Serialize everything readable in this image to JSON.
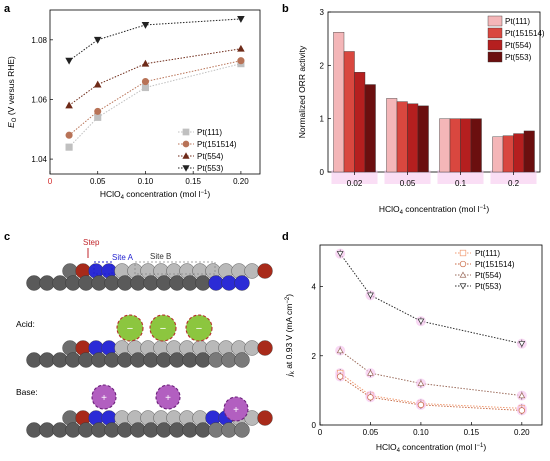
{
  "panel_letters": {
    "a": "a",
    "b": "b",
    "c": "c",
    "d": "d"
  },
  "colors": {
    "pt111": "#f4b6b8",
    "pt151514": "#d9473f",
    "pt554": "#b51f1f",
    "pt553": "#6b0f0f",
    "a_111": "#c0c0c0",
    "a_151514": "#b87357",
    "a_554": "#6e2a18",
    "a_553": "#222222",
    "d_111": "#f09b73",
    "d_151514": "#c96a45",
    "d_554": "#9a6a5a",
    "d_553": "#2d2d2d",
    "pink_halo": "#f7c8ef"
  },
  "chart_data": [
    {
      "panel": "a",
      "type": "line",
      "xlabel": "HClO4 concentration (mol l⁻¹)",
      "ylabel": "E0 (V versus RHE)",
      "x": [
        0.02,
        0.05,
        0.1,
        0.2
      ],
      "xlim": [
        0,
        0.22
      ],
      "ylim": [
        1.035,
        1.09
      ],
      "xticks": [
        "0",
        "0.05",
        "0.10",
        "0.15",
        "0.20"
      ],
      "yticks": [
        "1.04",
        "1.06",
        "1.08"
      ],
      "legend_position": "bottom-right",
      "series": [
        {
          "name": "Pt(111)",
          "marker": "square",
          "values": [
            1.044,
            1.054,
            1.064,
            1.072
          ]
        },
        {
          "name": "Pt(151514)",
          "marker": "circle",
          "values": [
            1.048,
            1.056,
            1.066,
            1.073
          ]
        },
        {
          "name": "Pt(554)",
          "marker": "triangle-up",
          "values": [
            1.058,
            1.065,
            1.072,
            1.077
          ]
        },
        {
          "name": "Pt(553)",
          "marker": "triangle-down",
          "values": [
            1.073,
            1.08,
            1.085,
            1.087
          ]
        }
      ]
    },
    {
      "panel": "b",
      "type": "bar",
      "xlabel": "HClO4 concentration (mol l⁻¹)",
      "ylabel": "Normalized ORR activity",
      "categories": [
        "0.02",
        "0.05",
        "0.1",
        "0.2"
      ],
      "ylim": [
        0,
        3
      ],
      "yticks": [
        "0",
        "1",
        "2",
        "3"
      ],
      "legend_position": "top-right",
      "series": [
        {
          "name": "Pt(111)",
          "values": [
            2.62,
            1.38,
            1.0,
            0.66
          ]
        },
        {
          "name": "Pt(151514)",
          "values": [
            2.26,
            1.32,
            1.0,
            0.68
          ]
        },
        {
          "name": "Pt(554)",
          "values": [
            1.87,
            1.28,
            1.0,
            0.72
          ]
        },
        {
          "name": "Pt(553)",
          "values": [
            1.64,
            1.24,
            1.0,
            0.77
          ]
        }
      ]
    },
    {
      "panel": "d",
      "type": "line",
      "xlabel": "HClO4 concentration (mol l⁻¹)",
      "ylabel": "jk at 0.93 V (mA cm⁻²)",
      "x": [
        0.02,
        0.05,
        0.1,
        0.2
      ],
      "xlim": [
        0,
        0.22
      ],
      "ylim": [
        0,
        5.2
      ],
      "xticks": [
        "0",
        "0.05",
        "0.10",
        "0.15",
        "0.20"
      ],
      "yticks": [
        "0",
        "2",
        "4"
      ],
      "legend_position": "top-right",
      "series": [
        {
          "name": "Pt(111)",
          "marker": "square",
          "values": [
            1.5,
            0.85,
            0.62,
            0.48
          ]
        },
        {
          "name": "Pt(151514)",
          "marker": "circle",
          "values": [
            1.4,
            0.8,
            0.58,
            0.42
          ]
        },
        {
          "name": "Pt(554)",
          "marker": "triangle-up",
          "values": [
            2.15,
            1.5,
            1.2,
            0.85
          ]
        },
        {
          "name": "Pt(553)",
          "marker": "triangle-down",
          "values": [
            4.95,
            3.75,
            3.0,
            2.35
          ]
        }
      ]
    }
  ],
  "panel_c": {
    "step_label": "Step",
    "site_a_label": "Site A",
    "site_b_label": "Site B",
    "acid_label": "Acid:",
    "base_label": "Base:",
    "anion_symbol": "−",
    "cation_symbol": "+"
  }
}
